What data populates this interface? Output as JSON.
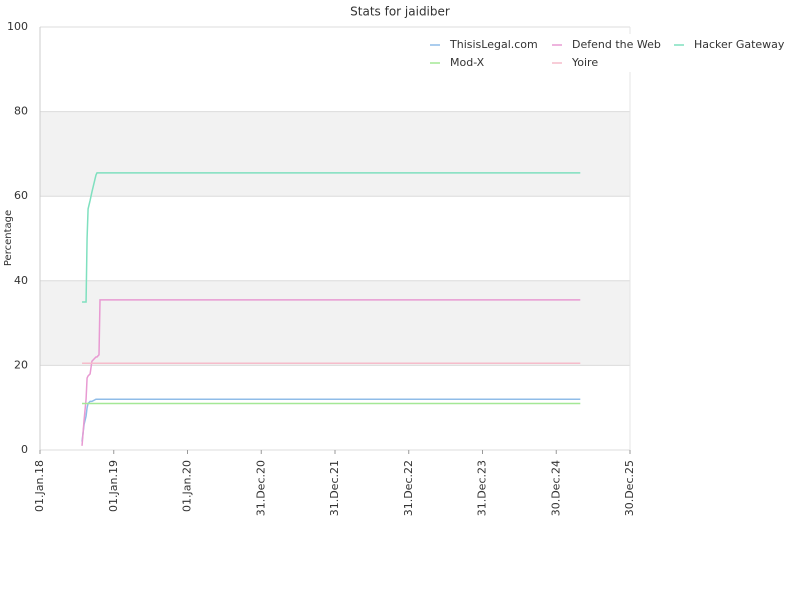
{
  "chart_data": {
    "type": "line",
    "title": "Stats for jaidiber",
    "y_label": "Percentage",
    "x": [
      "2018-07-28",
      "2018-08-07",
      "2018-08-17",
      "2018-08-22",
      "2018-08-27",
      "2018-09-06",
      "2018-09-15",
      "2018-10-05",
      "2018-10-10",
      "2018-10-20",
      "2018-10-25",
      "2025-04-28"
    ],
    "series": [
      {
        "name": "ThisisLegal.com",
        "color": "#8fbce8",
        "values": [
          2,
          6,
          8,
          10,
          11,
          11.5,
          11.5,
          12,
          12,
          12,
          12,
          12
        ]
      },
      {
        "name": "Defend the Web",
        "color": "#e89ad2",
        "values": [
          1,
          7,
          12,
          17,
          17.5,
          18,
          21,
          22,
          22,
          22.5,
          35.5,
          35.5
        ]
      },
      {
        "name": "Hacker Gateway",
        "color": "#7fe0bf",
        "values": [
          35,
          35,
          35,
          50,
          57,
          59,
          61,
          65,
          65.5,
          65.5,
          65.5,
          65.5
        ]
      },
      {
        "name": "Mod-X",
        "color": "#a4e896",
        "values": [
          11,
          11,
          11,
          11,
          11,
          11,
          11,
          11,
          11,
          11,
          11,
          11
        ]
      },
      {
        "name": "Yoire",
        "color": "#f6bccb",
        "values": [
          20.5,
          20.5,
          20.5,
          20.5,
          20.5,
          20.5,
          20.5,
          20.5,
          20.5,
          20.5,
          20.5,
          20.5
        ]
      }
    ],
    "xlim": [
      "2018-01-01",
      "2025-12-30"
    ],
    "xticks": [
      {
        "value": "2018-01-01",
        "label": "01.Jan.18"
      },
      {
        "value": "2019-01-01",
        "label": "01.Jan.19"
      },
      {
        "value": "2020-01-01",
        "label": "01.Jan.20"
      },
      {
        "value": "2020-12-31",
        "label": "31.Dec.20"
      },
      {
        "value": "2021-12-31",
        "label": "31.Dec.21"
      },
      {
        "value": "2022-12-31",
        "label": "31.Dec.22"
      },
      {
        "value": "2023-12-31",
        "label": "31.Dec.23"
      },
      {
        "value": "2024-12-30",
        "label": "30.Dec.24"
      },
      {
        "value": "2025-12-30",
        "label": "30.Dec.25"
      }
    ],
    "ylim": [
      0,
      100
    ],
    "yticks": [
      0,
      20,
      40,
      60,
      80,
      100
    ],
    "grid": true,
    "legend": "upper right"
  }
}
